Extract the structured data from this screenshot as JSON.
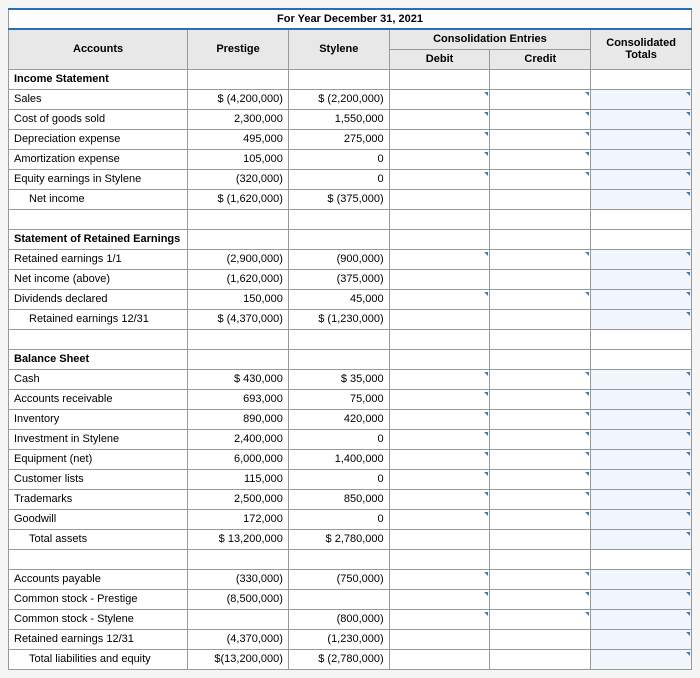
{
  "title": "For Year December 31, 2021",
  "headers": {
    "accounts": "Accounts",
    "prestige": "Prestige",
    "stylene": "Stylene",
    "consol_entries": "Consolidation Entries",
    "debit": "Debit",
    "credit": "Credit",
    "consol_totals": "Consolidated Totals"
  },
  "sections": {
    "income": "Income Statement",
    "retained": "Statement of Retained Earnings",
    "balance": "Balance Sheet"
  },
  "rows": {
    "sales": {
      "label": "Sales",
      "prestige": "$ (4,200,000)",
      "stylene": "$ (2,200,000)"
    },
    "cogs": {
      "label": "Cost of goods sold",
      "prestige": "2,300,000",
      "stylene": "1,550,000"
    },
    "dep": {
      "label": "Depreciation expense",
      "prestige": "495,000",
      "stylene": "275,000"
    },
    "amort": {
      "label": "Amortization expense",
      "prestige": "105,000",
      "stylene": "0"
    },
    "eqearn": {
      "label": "Equity earnings in Stylene",
      "prestige": "(320,000)",
      "stylene": "0"
    },
    "netinc": {
      "label": "Net income",
      "prestige": "$ (1,620,000)",
      "stylene": "$   (375,000)"
    },
    "re11": {
      "label": "Retained earnings 1/1",
      "prestige": "(2,900,000)",
      "stylene": "(900,000)"
    },
    "niabove": {
      "label": "Net income (above)",
      "prestige": "(1,620,000)",
      "stylene": "(375,000)"
    },
    "div": {
      "label": "Dividends declared",
      "prestige": "150,000",
      "stylene": "45,000"
    },
    "re1231": {
      "label": "Retained earnings 12/31",
      "prestige": "$ (4,370,000)",
      "stylene": "$ (1,230,000)"
    },
    "cash": {
      "label": "Cash",
      "prestige": "$     430,000",
      "stylene": "$      35,000"
    },
    "ar": {
      "label": "Accounts receivable",
      "prestige": "693,000",
      "stylene": "75,000"
    },
    "inv": {
      "label": "Inventory",
      "prestige": "890,000",
      "stylene": "420,000"
    },
    "invst": {
      "label": "Investment in Stylene",
      "prestige": "2,400,000",
      "stylene": "0"
    },
    "equip": {
      "label": "Equipment (net)",
      "prestige": "6,000,000",
      "stylene": "1,400,000"
    },
    "cust": {
      "label": "Customer lists",
      "prestige": "115,000",
      "stylene": "0"
    },
    "tm": {
      "label": "Trademarks",
      "prestige": "2,500,000",
      "stylene": "850,000"
    },
    "gw": {
      "label": "Goodwill",
      "prestige": "172,000",
      "stylene": "0"
    },
    "ta": {
      "label": "Total assets",
      "prestige": "$ 13,200,000",
      "stylene": "$  2,780,000"
    },
    "ap": {
      "label": "Accounts payable",
      "prestige": "(330,000)",
      "stylene": "(750,000)"
    },
    "csp": {
      "label": "Common stock - Prestige",
      "prestige": "(8,500,000)",
      "stylene": ""
    },
    "css": {
      "label": "Common stock - Stylene",
      "prestige": "",
      "stylene": "(800,000)"
    },
    "re1231b": {
      "label": "Retained earnings 12/31",
      "prestige": "(4,370,000)",
      "stylene": "(1,230,000)"
    },
    "tle": {
      "label": "Total liabilities and equity",
      "prestige": "$(13,200,000)",
      "stylene": "$ (2,780,000)"
    }
  },
  "colors": {
    "border_accent": "#2b6fb3",
    "header_bg": "#e8e8e8",
    "input_corner": "#3b7bbf"
  }
}
